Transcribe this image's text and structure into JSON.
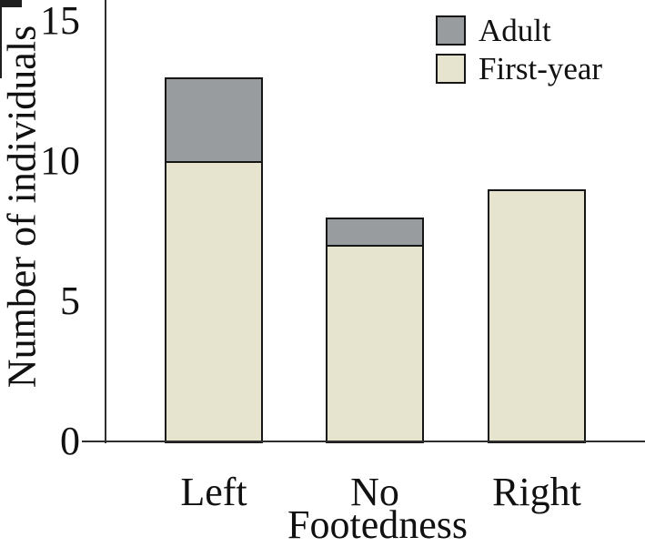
{
  "chart_data": {
    "type": "bar",
    "stacked": true,
    "title": "",
    "xlabel": "Footedness",
    "ylabel": "Number of individuals",
    "categories": [
      "Left",
      "No",
      "Right"
    ],
    "series": [
      {
        "name": "First-year",
        "color": "#e6e4cf",
        "values": [
          10,
          7,
          9
        ]
      },
      {
        "name": "Adult",
        "color": "#989c9f",
        "values": [
          3,
          1,
          0
        ]
      }
    ],
    "totals": [
      13,
      8,
      9
    ],
    "y_ticks": [
      0,
      5,
      10,
      15
    ],
    "ylim": [
      0,
      16
    ],
    "grid": false,
    "bar_edge_color": "#151515",
    "axis_color": "#2e2e2e",
    "legend": {
      "position": "top-right",
      "entries": [
        "Adult",
        "First-year"
      ]
    }
  }
}
